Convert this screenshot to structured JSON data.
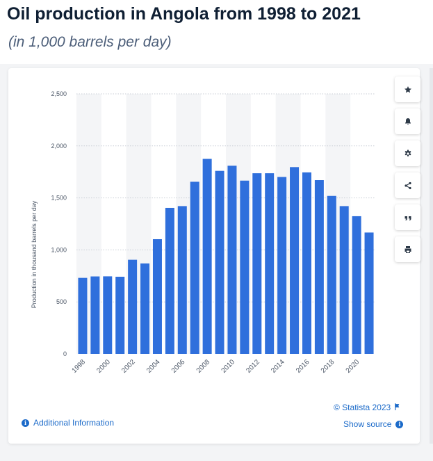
{
  "header": {
    "title": "Oil production in Angola from 1998 to 2021",
    "subtitle": "(in 1,000 barrels per day)"
  },
  "toolbar": {
    "buttons": [
      {
        "name": "star-button",
        "icon": "star-icon"
      },
      {
        "name": "notification-button",
        "icon": "bell-icon"
      },
      {
        "name": "settings-button",
        "icon": "gear-icon"
      },
      {
        "name": "share-button",
        "icon": "share-icon"
      },
      {
        "name": "cite-button",
        "icon": "quote-icon"
      },
      {
        "name": "print-button",
        "icon": "print-icon"
      }
    ]
  },
  "footer": {
    "credit": "© Statista 2023",
    "show_source": "Show source",
    "additional_info": "Additional Information"
  },
  "colors": {
    "bar": "#2f6fdc",
    "band": "#f4f5f7",
    "grid": "#c9ced6",
    "link": "#1b6ac9",
    "icon": "#2e3a48"
  },
  "chart_data": {
    "type": "bar",
    "title": "",
    "xlabel": "",
    "ylabel": "Production in thousand barrels per day",
    "ylim": [
      0,
      2500
    ],
    "yticks": [
      0,
      500,
      1000,
      1500,
      2000,
      2500
    ],
    "ytick_labels": [
      "0",
      "500",
      "1,000",
      "1,500",
      "2,000",
      "2,500"
    ],
    "xtick_labels": [
      "1998",
      "2000",
      "2002",
      "2004",
      "2006",
      "2008",
      "2010",
      "2012",
      "2014",
      "2016",
      "2018",
      "2020"
    ],
    "grid": true,
    "legend": "none",
    "categories": [
      "1998",
      "1999",
      "2000",
      "2001",
      "2002",
      "2003",
      "2004",
      "2005",
      "2006",
      "2007",
      "2008",
      "2009",
      "2010",
      "2011",
      "2012",
      "2013",
      "2014",
      "2015",
      "2016",
      "2017",
      "2018",
      "2019",
      "2020",
      "2021"
    ],
    "values": [
      731,
      745,
      746,
      742,
      905,
      870,
      1103,
      1404,
      1421,
      1655,
      1875,
      1760,
      1809,
      1666,
      1737,
      1737,
      1701,
      1796,
      1745,
      1671,
      1519,
      1421,
      1324,
      1167
    ]
  }
}
